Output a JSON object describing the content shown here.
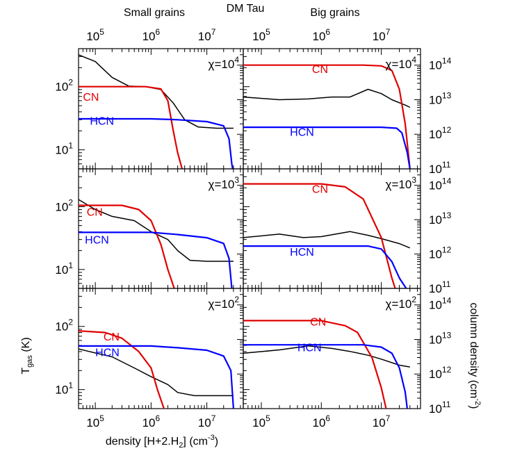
{
  "figure": {
    "top_title": "DM Tau",
    "left_column_title": "Small grains",
    "right_column_title": "Big grains",
    "xlabel": "density [H+2.H",
    "xlabel_sub": "2",
    "xlabel_unit": "] (cm",
    "xlabel_exp": "-3",
    "xlabel_close": ")",
    "ylabel_left": "T",
    "ylabel_left_sub": "gas",
    "ylabel_left_unit": " (K)",
    "ylabel_right": "column density (cm",
    "ylabel_right_exp": "-2",
    "ylabel_right_close": ")"
  },
  "chart_data": [
    {
      "type": "line",
      "grain": "Small grains",
      "chi_label": "χ=10",
      "chi_exp": "4",
      "xscale": "log",
      "xlim": [
        50000,
        45000000
      ],
      "y_left": {
        "label": "T_gas (K)",
        "scale": "log",
        "lim": [
          5,
          400
        ],
        "ticks": [
          10,
          100
        ]
      },
      "y_right": {
        "label": "column density (cm^-2)",
        "scale": "log",
        "lim": [
          100000000000.0,
          300000000000000.0
        ]
      },
      "series": [
        {
          "name": "",
          "axis": "left",
          "color": "#000000",
          "points": [
            [
              50000,
              320
            ],
            [
              100000,
              250
            ],
            [
              200000,
              140
            ],
            [
              400000,
              102
            ],
            [
              800000,
              100
            ],
            [
              1500000,
              90
            ],
            [
              2500000,
              55
            ],
            [
              4000000,
              30
            ],
            [
              7000000,
              23
            ],
            [
              15000000,
              22
            ],
            [
              30000000,
              22
            ]
          ]
        },
        {
          "name": "CN",
          "axis": "left",
          "color": "#e00000",
          "points": [
            [
              50000,
              100
            ],
            [
              800000,
              100
            ],
            [
              1500000,
              92
            ],
            [
              2000000,
              60
            ],
            [
              2500000,
              20
            ],
            [
              3000000,
              9
            ],
            [
              3600000,
              5
            ]
          ]
        },
        {
          "name": "HCN",
          "axis": "left",
          "color": "#0000ff",
          "points": [
            [
              50000,
              31
            ],
            [
              1000000,
              31
            ],
            [
              3000000,
              30
            ],
            [
              10000000,
              28
            ],
            [
              20000000,
              24
            ],
            [
              25000000,
              15
            ],
            [
              28000000,
              6
            ],
            [
              29000000,
              5
            ]
          ]
        }
      ],
      "labels": [
        {
          "text": "CN",
          "color": "#e00000",
          "x": 60000,
          "y": 60
        },
        {
          "text": "HCN",
          "color": "#0000ff",
          "x": 80000,
          "y": 25
        }
      ]
    },
    {
      "type": "line",
      "grain": "Big grains",
      "chi_label": "χ=10",
      "chi_exp": "4",
      "xscale": "log",
      "xlim": [
        50000,
        45000000
      ],
      "y_left": {
        "label": "T_gas (K)",
        "scale": "log",
        "lim": [
          5,
          400
        ],
        "ticks": [
          10,
          100
        ]
      },
      "y_right": {
        "label": "column density (cm^-2)",
        "scale": "log",
        "lim": [
          100000000000.0,
          300000000000000.0
        ],
        "ticks": [
          100000000000.0,
          1000000000000.0,
          10000000000000.0,
          100000000000000.0
        ]
      },
      "series": [
        {
          "name": "",
          "axis": "right",
          "color": "#000000",
          "points": [
            [
              50000,
              12000000000000.0
            ],
            [
              200000,
              10000000000000.0
            ],
            [
              600000,
              10500000000000.0
            ],
            [
              1500000,
              12000000000000.0
            ],
            [
              3000000,
              12000000000000.0
            ],
            [
              6000000,
              20000000000000.0
            ],
            [
              10000000,
              15000000000000.0
            ],
            [
              15000000,
              10000000000000.0
            ],
            [
              25000000,
              7000000000000.0
            ],
            [
              30000000,
              6000000000000.0
            ]
          ]
        },
        {
          "name": "CN",
          "axis": "right",
          "color": "#e00000",
          "points": [
            [
              50000,
              100000000000000.0
            ],
            [
              5000000,
              100000000000000.0
            ],
            [
              10000000,
              95000000000000.0
            ],
            [
              15000000,
              70000000000000.0
            ],
            [
              20000000,
              20000000000000.0
            ],
            [
              25000000,
              2000000000000.0
            ],
            [
              30000000,
              100000000000.0
            ]
          ]
        },
        {
          "name": "HCN",
          "axis": "right",
          "color": "#0000ff",
          "points": [
            [
              50000,
              1600000000000.0
            ],
            [
              10000000,
              1600000000000.0
            ],
            [
              18000000,
              1500000000000.0
            ],
            [
              22000000,
              1100000000000.0
            ],
            [
              27000000,
              300000000000.0
            ],
            [
              30000000,
              100000000000.0
            ]
          ]
        }
      ],
      "labels": [
        {
          "text": "CN",
          "color": "#e00000",
          "x": 700000,
          "y": 60000000000000.0
        },
        {
          "text": "HCN",
          "color": "#0000ff",
          "x": 300000,
          "y": 900000000000.0
        }
      ]
    },
    {
      "type": "line",
      "grain": "Small grains",
      "chi_label": "χ=10",
      "chi_exp": "3",
      "xscale": "log",
      "xlim": [
        50000,
        45000000
      ],
      "y_left": {
        "label": "T_gas (K)",
        "scale": "log",
        "lim": [
          5,
          400
        ],
        "ticks": [
          10,
          100
        ]
      },
      "y_right": {
        "label": "column density (cm^-2)",
        "scale": "log",
        "lim": [
          100000000000.0,
          300000000000000.0
        ]
      },
      "series": [
        {
          "name": "",
          "axis": "left",
          "color": "#000000",
          "points": [
            [
              50000,
              130
            ],
            [
              100000,
              90
            ],
            [
              200000,
              70
            ],
            [
              500000,
              60
            ],
            [
              1000000,
              40
            ],
            [
              2000000,
              30
            ],
            [
              3000000,
              20
            ],
            [
              5000000,
              14
            ],
            [
              10000000,
              13.5
            ],
            [
              30000000,
              13.5
            ]
          ]
        },
        {
          "name": "CN",
          "axis": "left",
          "color": "#e00000",
          "points": [
            [
              50000,
              105
            ],
            [
              300000,
              105
            ],
            [
              600000,
              90
            ],
            [
              1000000,
              60
            ],
            [
              1500000,
              25
            ],
            [
              2000000,
              10
            ],
            [
              2600000,
              5
            ]
          ]
        },
        {
          "name": "HCN",
          "axis": "left",
          "color": "#0000ff",
          "points": [
            [
              50000,
              39
            ],
            [
              1000000,
              39
            ],
            [
              3000000,
              36
            ],
            [
              10000000,
              32
            ],
            [
              20000000,
              26
            ],
            [
              25000000,
              15
            ],
            [
              28000000,
              5
            ]
          ]
        }
      ],
      "labels": [
        {
          "text": "CN",
          "color": "#e00000",
          "x": 70000,
          "y": 72
        },
        {
          "text": "HCN",
          "color": "#0000ff",
          "x": 65000,
          "y": 26
        }
      ]
    },
    {
      "type": "line",
      "grain": "Big grains",
      "chi_label": "χ=10",
      "chi_exp": "3",
      "xscale": "log",
      "xlim": [
        50000,
        45000000
      ],
      "y_left": {
        "label": "T_gas (K)",
        "scale": "log",
        "lim": [
          5,
          400
        ],
        "ticks": [
          10,
          100
        ]
      },
      "y_right": {
        "label": "column density (cm^-2)",
        "scale": "log",
        "lim": [
          100000000000.0,
          300000000000000.0
        ],
        "ticks": [
          100000000000.0,
          1000000000000.0,
          10000000000000.0,
          100000000000000.0
        ]
      },
      "series": [
        {
          "name": "",
          "axis": "right",
          "color": "#000000",
          "points": [
            [
              50000,
              3000000000000.0
            ],
            [
              200000,
              3800000000000.0
            ],
            [
              500000,
              3000000000000.0
            ],
            [
              1000000,
              3200000000000.0
            ],
            [
              3000000,
              4500000000000.0
            ],
            [
              6000000,
              3500000000000.0
            ],
            [
              10000000,
              2800000000000.0
            ],
            [
              20000000,
              2000000000000.0
            ],
            [
              30000000,
              1500000000000.0
            ]
          ]
        },
        {
          "name": "CN",
          "axis": "right",
          "color": "#e00000",
          "points": [
            [
              50000,
              110000000000000.0
            ],
            [
              1000000,
              110000000000000.0
            ],
            [
              2500000,
              90000000000000.0
            ],
            [
              5000000,
              40000000000000.0
            ],
            [
              10000000,
              3000000000000.0
            ],
            [
              15000000,
              200000000000.0
            ],
            [
              17000000,
              100000000000.0
            ]
          ]
        },
        {
          "name": "HCN",
          "axis": "right",
          "color": "#0000ff",
          "points": [
            [
              50000,
              1700000000000.0
            ],
            [
              6000000,
              1700000000000.0
            ],
            [
              10000000,
              1400000000000.0
            ],
            [
              15000000,
              600000000000.0
            ],
            [
              20000000,
              200000000000.0
            ],
            [
              26000000,
              100000000000.0
            ]
          ]
        }
      ],
      "labels": [
        {
          "text": "CN",
          "color": "#e00000",
          "x": 700000,
          "y": 60000000000000.0
        },
        {
          "text": "HCN",
          "color": "#0000ff",
          "x": 300000,
          "y": 900000000000.0
        }
      ]
    },
    {
      "type": "line",
      "grain": "Small grains",
      "chi_label": "χ=10",
      "chi_exp": "2",
      "xscale": "log",
      "xlim": [
        50000,
        45000000
      ],
      "y_left": {
        "label": "T_gas (K)",
        "scale": "log",
        "lim": [
          5,
          400
        ],
        "ticks": [
          10,
          100
        ]
      },
      "y_right": {
        "label": "column density (cm^-2)",
        "scale": "log",
        "lim": [
          100000000000.0,
          300000000000000.0
        ]
      },
      "series": [
        {
          "name": "",
          "axis": "left",
          "color": "#000000",
          "points": [
            [
              50000,
              44
            ],
            [
              100000,
              38
            ],
            [
              200000,
              33
            ],
            [
              500000,
              22
            ],
            [
              1000000,
              16
            ],
            [
              2000000,
              12
            ],
            [
              3000000,
              9
            ],
            [
              6000000,
              8
            ],
            [
              30000000,
              8
            ]
          ]
        },
        {
          "name": "CN",
          "axis": "left",
          "color": "#e00000",
          "points": [
            [
              50000,
              85
            ],
            [
              150000,
              80
            ],
            [
              300000,
              65
            ],
            [
              600000,
              40
            ],
            [
              1000000,
              22
            ],
            [
              1300000,
              10
            ],
            [
              1700000,
              5
            ]
          ]
        },
        {
          "name": "HCN",
          "axis": "left",
          "color": "#0000ff",
          "points": [
            [
              50000,
              49
            ],
            [
              1000000,
              49
            ],
            [
              3000000,
              46
            ],
            [
              10000000,
              42
            ],
            [
              20000000,
              34
            ],
            [
              27000000,
              20
            ],
            [
              30000000,
              5
            ]
          ]
        }
      ],
      "labels": [
        {
          "text": "CN",
          "color": "#e00000",
          "x": 140000,
          "y": 60
        },
        {
          "text": "HCN",
          "color": "#0000ff",
          "x": 100000,
          "y": 34
        }
      ]
    },
    {
      "type": "line",
      "grain": "Big grains",
      "chi_label": "χ=10",
      "chi_exp": "2",
      "xscale": "log",
      "xlim": [
        50000,
        45000000
      ],
      "y_left": {
        "label": "T_gas (K)",
        "scale": "log",
        "lim": [
          5,
          400
        ],
        "ticks": [
          10,
          100
        ]
      },
      "y_right": {
        "label": "column density (cm^-2)",
        "scale": "log",
        "lim": [
          100000000000.0,
          300000000000000.0
        ],
        "ticks": [
          100000000000.0,
          1000000000000.0,
          10000000000000.0,
          100000000000000.0
        ]
      },
      "series": [
        {
          "name": "",
          "axis": "right",
          "color": "#000000",
          "points": [
            [
              50000,
              4000000000000.0
            ],
            [
              200000,
              5000000000000.0
            ],
            [
              600000,
              6500000000000.0
            ],
            [
              1500000,
              5500000000000.0
            ],
            [
              3000000,
              4500000000000.0
            ],
            [
              6000000,
              3500000000000.0
            ],
            [
              10000000,
              2700000000000.0
            ],
            [
              20000000,
              1800000000000.0
            ],
            [
              30000000,
              1600000000000.0
            ]
          ]
        },
        {
          "name": "CN",
          "axis": "right",
          "color": "#e00000",
          "points": [
            [
              50000,
              35000000000000.0
            ],
            [
              1000000,
              35000000000000.0
            ],
            [
              2500000,
              25000000000000.0
            ],
            [
              4000000,
              16000000000000.0
            ],
            [
              7000000,
              3000000000000.0
            ],
            [
              10000000,
              400000000000.0
            ],
            [
              12000000,
              100000000000.0
            ]
          ]
        },
        {
          "name": "HCN",
          "axis": "right",
          "color": "#0000ff",
          "points": [
            [
              50000,
              7000000000000.0
            ],
            [
              5000000,
              7000000000000.0
            ],
            [
              10000000,
              6000000000000.0
            ],
            [
              15000000,
              4000000000000.0
            ],
            [
              20000000,
              1500000000000.0
            ],
            [
              25000000,
              300000000000.0
            ],
            [
              27000000,
              100000000000.0
            ]
          ]
        }
      ],
      "labels": [
        {
          "text": "CN",
          "color": "#e00000",
          "x": 650000,
          "y": 25000000000000.0
        },
        {
          "text": "HCN",
          "color": "#0000ff",
          "x": 400000,
          "y": 4500000000000.0
        }
      ]
    }
  ]
}
